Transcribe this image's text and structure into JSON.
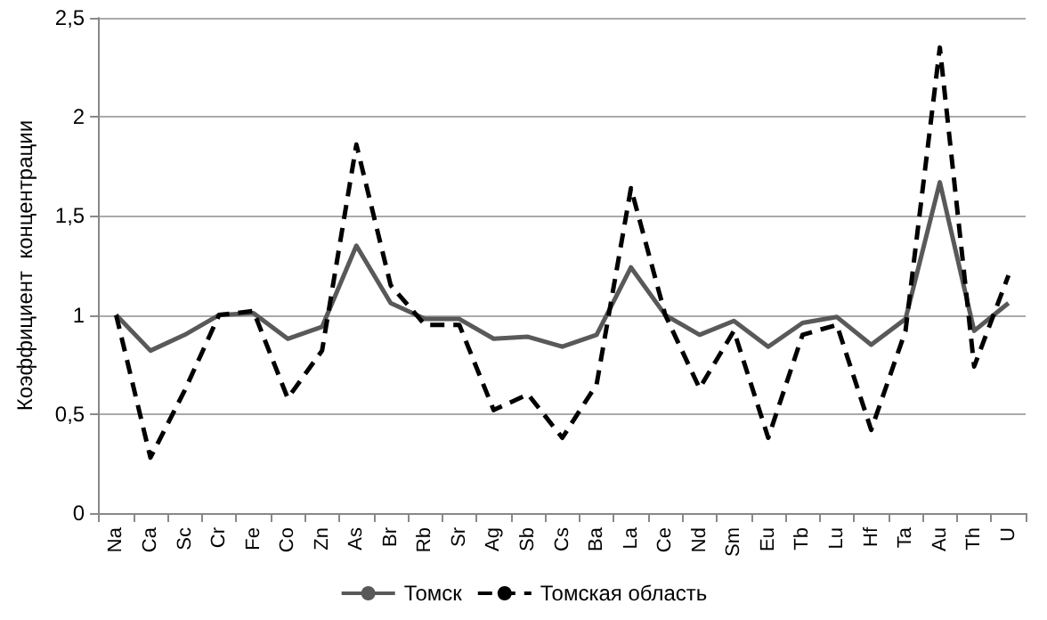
{
  "chart_data": {
    "type": "line",
    "ylabel": "Коэффициент  концентрации",
    "categories": [
      "Na",
      "Ca",
      "Sc",
      "Cr",
      "Fe",
      "Co",
      "Zn",
      "As",
      "Br",
      "Rb",
      "Sr",
      "Ag",
      "Sb",
      "Cs",
      "Ba",
      "La",
      "Ce",
      "Nd",
      "Sm",
      "Eu",
      "Tb",
      "Lu",
      "Hf",
      "Ta",
      "Au",
      "Th",
      "U"
    ],
    "series": [
      {
        "name": "Томск",
        "color": "#595959",
        "line_style": "solid",
        "values": [
          1.0,
          0.82,
          0.9,
          1.0,
          1.01,
          0.88,
          0.94,
          1.35,
          1.06,
          0.98,
          0.98,
          0.88,
          0.89,
          0.84,
          0.9,
          1.24,
          1.0,
          0.9,
          0.97,
          0.84,
          0.96,
          0.99,
          0.85,
          0.98,
          1.67,
          0.92,
          1.06
        ]
      },
      {
        "name": "Томская область",
        "color": "#000000",
        "line_style": "dashed",
        "values": [
          1.0,
          0.28,
          0.62,
          1.0,
          1.02,
          0.58,
          0.82,
          1.86,
          1.15,
          0.95,
          0.95,
          0.52,
          0.6,
          0.38,
          0.65,
          1.64,
          1.0,
          0.63,
          0.92,
          0.38,
          0.9,
          0.95,
          0.42,
          0.92,
          2.35,
          0.74,
          1.2
        ]
      }
    ],
    "ylim": [
      0,
      2.5
    ],
    "yticks": [
      0,
      {
        "value": 0.5,
        "label": "0,5"
      },
      1,
      {
        "value": 1.5,
        "label": "1,5"
      },
      2,
      {
        "value": 2.5,
        "label": "2,5"
      }
    ],
    "grid": "y",
    "legend": "bottom",
    "marker": "none"
  }
}
